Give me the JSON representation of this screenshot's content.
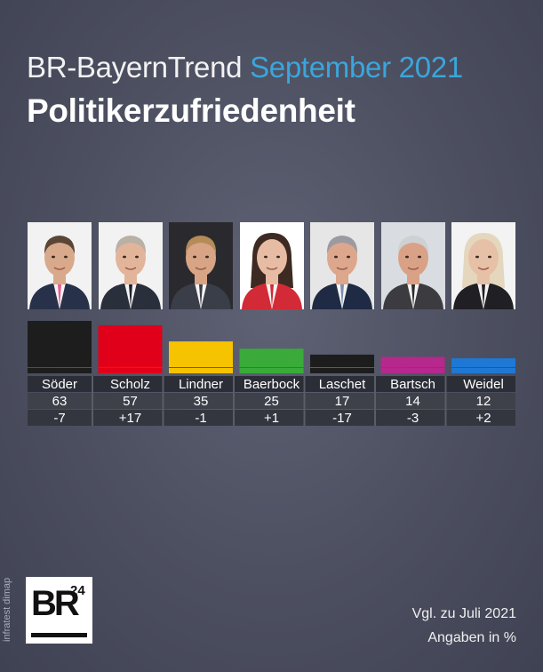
{
  "header": {
    "title": "BR-BayernTrend",
    "title_accent": "September 2021",
    "subtitle": "Politikerzufriedenheit"
  },
  "chart_data": {
    "type": "bar",
    "categories": [
      "Söder",
      "Scholz",
      "Lindner",
      "Baerbock",
      "Laschet",
      "Bartsch",
      "Weidel"
    ],
    "values": [
      63,
      57,
      35,
      25,
      17,
      14,
      12
    ],
    "changes": [
      "-7",
      "+17",
      "-1",
      "+1",
      "-17",
      "-3",
      "+2"
    ],
    "colors": [
      "#1d1d1d",
      "#e1001a",
      "#f5c300",
      "#3aab3a",
      "#1d1d1d",
      "#b5288c",
      "#1f78d4"
    ],
    "ylim": [
      0,
      63
    ],
    "grid": false,
    "legend": "none"
  },
  "photos": [
    {
      "name": "soeder",
      "skin": "#d9a98c",
      "hair": "#5a4636",
      "clothes": "#27324a",
      "tie": "#e85b93",
      "bg": "#f2f2f2"
    },
    {
      "name": "scholz",
      "skin": "#e2b59a",
      "hair": "#b9b0a6",
      "clothes": "#2a2f3c",
      "tie": "#1f2230",
      "bg": "#f2f2f2"
    },
    {
      "name": "lindner",
      "skin": "#d8a486",
      "hair": "#b58b58",
      "clothes": "#3a3e48",
      "tie": "#3a3e48",
      "bg": "#2a2a2e"
    },
    {
      "name": "baerbock",
      "skin": "#e7bca4",
      "hair": "#3d2a22",
      "clothes": "#d22a36",
      "tie": "#d22a36",
      "bg": "#ffffff"
    },
    {
      "name": "laschet",
      "skin": "#dca78c",
      "hair": "#9a9aa0",
      "clothes": "#1f2a44",
      "tie": "#7a8fb0",
      "bg": "#e6e6e6"
    },
    {
      "name": "bartsch",
      "skin": "#d9a286",
      "hair": "#cfd0d2",
      "clothes": "#3b3b40",
      "tie": "#2b2b2b",
      "bg": "#d9dde2"
    },
    {
      "name": "weidel",
      "skin": "#e6c1a7",
      "hair": "#e4d7bd",
      "clothes": "#1f1f24",
      "tie": "#1f1f24",
      "bg": "#f3f3f3"
    }
  ],
  "logo": {
    "brand": "BR",
    "number": "24"
  },
  "source": "infratest dimap",
  "footnotes": {
    "comparison": "Vgl. zu Juli 2021",
    "unit": "Angaben in %"
  }
}
